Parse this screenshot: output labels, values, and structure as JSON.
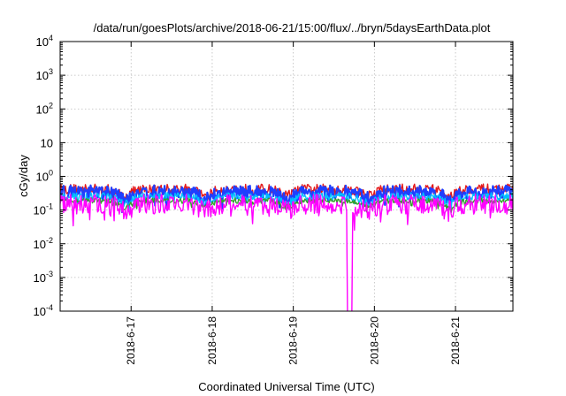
{
  "chart_data": {
    "type": "line",
    "title": "/data/run/goesPlots/archive/2018-06-21/15:00/flux/../bryn/5daysEarthData.plot",
    "xlabel": "Coordinated Universal Time (UTC)",
    "ylabel": "cGy/day",
    "yscale": "log",
    "ylim": [
      0.0001,
      10000
    ],
    "yticks": [
      {
        "value": 0.0001,
        "base": "10",
        "exp": "-4"
      },
      {
        "value": 0.001,
        "base": "10",
        "exp": "-3"
      },
      {
        "value": 0.01,
        "base": "10",
        "exp": "-2"
      },
      {
        "value": 0.1,
        "base": "10",
        "exp": "-1"
      },
      {
        "value": 1,
        "base": "10",
        "exp": "0"
      },
      {
        "value": 10,
        "base": "10",
        "exp": ""
      },
      {
        "value": 100,
        "base": "10",
        "exp": "2"
      },
      {
        "value": 1000,
        "base": "10",
        "exp": "3"
      },
      {
        "value": 10000,
        "base": "10",
        "exp": "4"
      }
    ],
    "xlim": [
      "2018-06-16T03:00",
      "2018-06-21T17:00"
    ],
    "xticks": [
      {
        "date": "2018-06-17T00:00",
        "label": "2018-6-17"
      },
      {
        "date": "2018-06-18T00:00",
        "label": "2018-6-18"
      },
      {
        "date": "2018-06-19T00:00",
        "label": "2018-6-19"
      },
      {
        "date": "2018-06-20T00:00",
        "label": "2018-6-20"
      },
      {
        "date": "2018-06-21T00:00",
        "label": "2018-6-21"
      }
    ],
    "grid": true,
    "series": [
      {
        "color": "#e41a1c",
        "level": 0.42,
        "spread": 0.15,
        "dropouts": []
      },
      {
        "color": "#1f3fff",
        "level": 0.34,
        "spread": 0.2,
        "dropouts": []
      },
      {
        "color": "#00bfff",
        "level": 0.25,
        "spread": 0.12,
        "dropouts": []
      },
      {
        "color": "#33a02c",
        "level": 0.19,
        "spread": 0.08,
        "dropouts": []
      },
      {
        "color": "#ff00ff",
        "level": 0.15,
        "spread": 0.3,
        "dropouts": [
          [
            "2018-06-19T16:00",
            "2018-06-19T17:20"
          ]
        ]
      }
    ]
  }
}
